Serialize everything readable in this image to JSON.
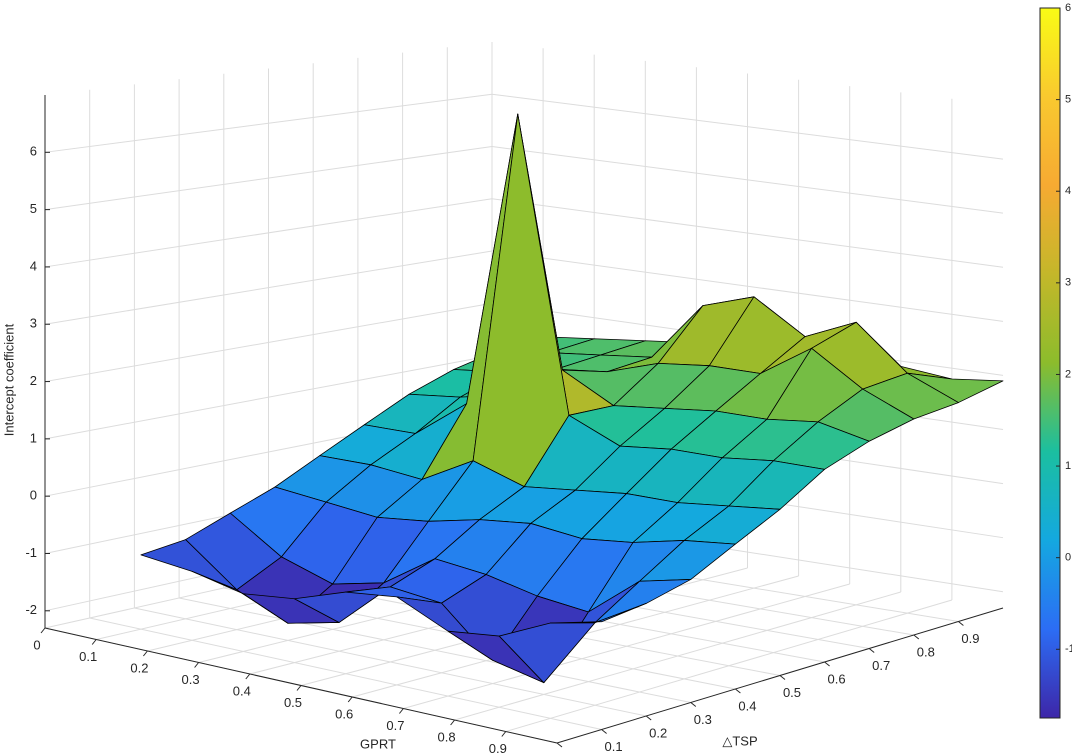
{
  "chart_data": {
    "type": "surface",
    "xlabel": "GPRT",
    "ylabel": "△TSP",
    "zlabel": "Intercept coefficient",
    "x": [
      0.1,
      0.2,
      0.3,
      0.4,
      0.5,
      0.6,
      0.7,
      0.8,
      0.9,
      1.0
    ],
    "y": [
      0.1,
      0.2,
      0.3,
      0.4,
      0.5,
      0.6,
      0.7,
      0.8,
      0.9,
      1.0
    ],
    "z": [
      [
        -1.0,
        -0.9,
        -0.6,
        -0.3,
        0.1,
        0.5,
        0.9,
        1.2,
        1.4,
        1.5
      ],
      [
        -1.1,
        -1.6,
        -1.2,
        -0.4,
        0.1,
        0.5,
        1.0,
        1.3,
        1.5,
        1.6
      ],
      [
        -1.3,
        -2.0,
        -1.5,
        -0.5,
        0.0,
        1.2,
        1.2,
        1.5,
        1.6,
        1.7
      ],
      [
        -1.2,
        -1.8,
        -1.3,
        -0.4,
        0.5,
        6.6,
        1.8,
        1.6,
        1.7,
        1.8
      ],
      [
        -0.9,
        -1.0,
        -0.7,
        -0.2,
        0.2,
        1.3,
        1.3,
        1.9,
        2.8,
        2.0
      ],
      [
        -0.8,
        -1.1,
        -0.8,
        -0.1,
        0.3,
        0.9,
        1.4,
        2.0,
        3.1,
        2.1
      ],
      [
        -1.2,
        -1.9,
        -1.0,
        -0.2,
        0.4,
        1.0,
        1.5,
        2.0,
        2.5,
        2.0
      ],
      [
        -1.1,
        -2.1,
        -1.1,
        -0.1,
        0.4,
        1.0,
        1.5,
        2.6,
        2.9,
        1.9
      ],
      [
        -0.7,
        -0.9,
        -0.4,
        0.1,
        0.5,
        1.1,
        1.6,
        2.0,
        2.1,
        1.8
      ],
      [
        -0.5,
        -0.4,
        -0.2,
        0.2,
        0.6,
        1.1,
        1.4,
        1.6,
        1.7,
        1.9
      ]
    ],
    "xlim": [
      0,
      1
    ],
    "ylim": [
      0,
      1
    ],
    "zlim": [
      -2.3,
      7
    ],
    "xticks": [
      0,
      0.1,
      0.2,
      0.3,
      0.4,
      0.5,
      0.6,
      0.7,
      0.8,
      0.9
    ],
    "yticks": [
      0,
      0.1,
      0.2,
      0.3,
      0.4,
      0.5,
      0.6,
      0.7,
      0.8,
      0.9
    ],
    "zticks": [
      -2,
      -1,
      0,
      1,
      2,
      3,
      4,
      5,
      6
    ],
    "clim": [
      -1.75,
      6
    ],
    "cticks": [
      -1,
      0,
      1,
      2,
      3,
      4,
      5,
      6
    ],
    "colormap": [
      "#3d26a8",
      "#2c6df5",
      "#14a8e0",
      "#1bbfa0",
      "#8cbc2c",
      "#c4b72a",
      "#f6aa32",
      "#f9c92f",
      "#f9fb15"
    ],
    "edgecolor": "#000000",
    "grid": true
  }
}
